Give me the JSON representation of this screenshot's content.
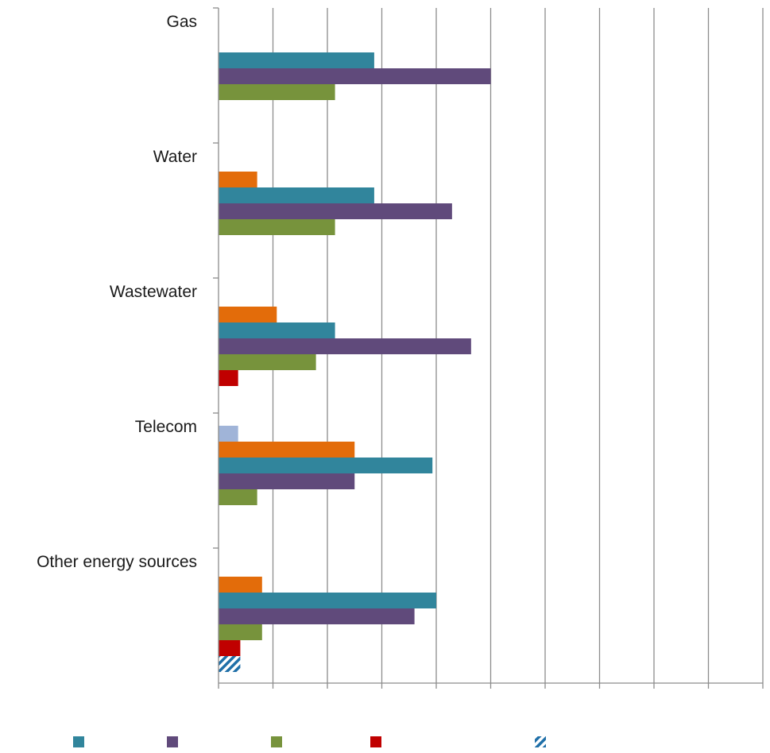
{
  "chart_data": {
    "type": "bar",
    "orientation": "horizontal",
    "title": "",
    "xlabel": "",
    "ylabel": "",
    "categories": [
      "Gas",
      "Water",
      "Wastewater",
      "Telecom",
      "Other energy sources"
    ],
    "xlim": [
      0,
      10
    ],
    "grid": true,
    "legend_position": "bottom",
    "series": [
      {
        "color": "#a0b4d8",
        "values": [
          0,
          0,
          0,
          0.36,
          0
        ]
      },
      {
        "color": "#e36c0a",
        "values": [
          0,
          0.71,
          1.07,
          2.5,
          0.8
        ]
      },
      {
        "color": "#31859c",
        "values": [
          2.86,
          2.86,
          2.14,
          3.93,
          4.0
        ]
      },
      {
        "color": "#604a7b",
        "values": [
          5.0,
          4.29,
          4.64,
          2.5,
          3.6
        ]
      },
      {
        "color": "#77933c",
        "values": [
          2.14,
          2.14,
          1.79,
          0.71,
          0.8
        ]
      },
      {
        "color": "#c00000",
        "values": [
          0,
          0,
          0.36,
          0,
          0.4
        ]
      },
      {
        "color": "#1f6fa8",
        "pattern": "hatched",
        "values": [
          0,
          0,
          0,
          0,
          0.4
        ]
      }
    ],
    "legend": [
      {
        "color": "#31859c",
        "pattern": "solid"
      },
      {
        "color": "#604a7b",
        "pattern": "solid"
      },
      {
        "color": "#77933c",
        "pattern": "solid"
      },
      {
        "color": "#c00000",
        "pattern": "solid"
      },
      {
        "color": "#1f6fa8",
        "pattern": "hatched"
      }
    ]
  }
}
